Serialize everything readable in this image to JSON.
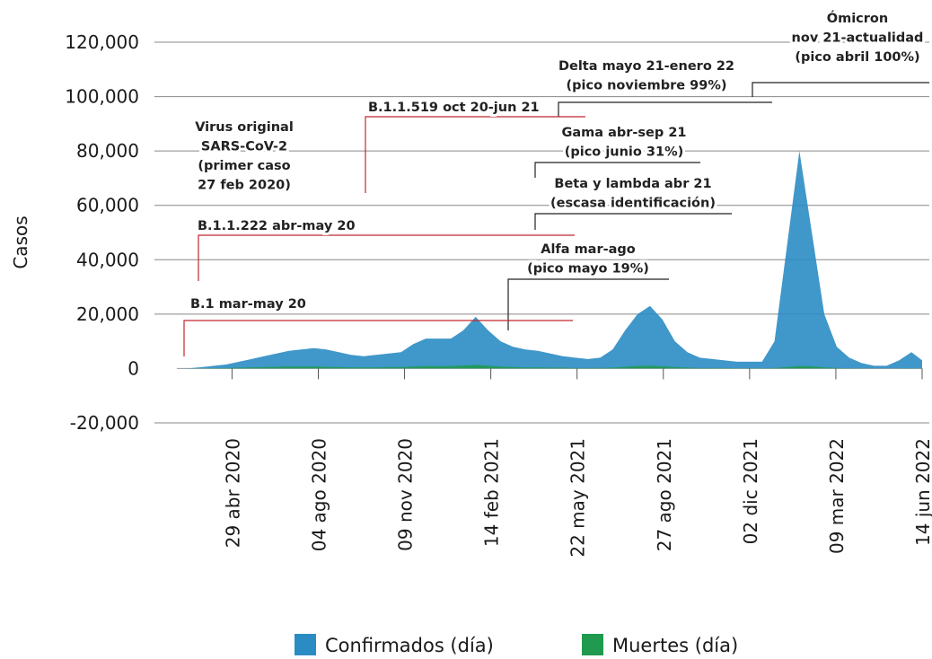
{
  "chart_data": {
    "type": "area",
    "y_label": "Casos",
    "x": [
      "2020-02-27",
      "2020-03-12",
      "2020-03-26",
      "2020-04-09",
      "2020-04-23",
      "2020-05-07",
      "2020-05-21",
      "2020-06-04",
      "2020-06-18",
      "2020-07-02",
      "2020-07-16",
      "2020-07-30",
      "2020-08-13",
      "2020-08-27",
      "2020-09-10",
      "2020-09-24",
      "2020-10-08",
      "2020-10-22",
      "2020-11-05",
      "2020-11-19",
      "2020-12-03",
      "2020-12-17",
      "2020-12-31",
      "2021-01-14",
      "2021-01-28",
      "2021-02-11",
      "2021-02-25",
      "2021-03-11",
      "2021-03-25",
      "2021-04-08",
      "2021-04-22",
      "2021-05-06",
      "2021-05-20",
      "2021-06-03",
      "2021-06-17",
      "2021-07-01",
      "2021-07-15",
      "2021-07-29",
      "2021-08-12",
      "2021-08-26",
      "2021-09-09",
      "2021-09-23",
      "2021-10-07",
      "2021-10-21",
      "2021-11-04",
      "2021-11-18",
      "2021-12-02",
      "2021-12-16",
      "2021-12-30",
      "2022-01-13",
      "2022-01-27",
      "2022-02-10",
      "2022-02-24",
      "2022-03-10",
      "2022-03-24",
      "2022-04-07",
      "2022-04-21",
      "2022-05-05",
      "2022-05-19",
      "2022-06-02",
      "2022-06-14"
    ],
    "series": [
      {
        "name": "Confirmados (día)",
        "color": "#2b8cc4",
        "values": [
          0,
          100,
          500,
          1000,
          1500,
          2500,
          3500,
          4500,
          5500,
          6500,
          7000,
          7500,
          7000,
          6000,
          5000,
          4500,
          5000,
          5500,
          6000,
          9000,
          11000,
          11000,
          11000,
          14000,
          19000,
          14000,
          10000,
          8000,
          7000,
          6500,
          5500,
          4500,
          4000,
          3500,
          4000,
          7000,
          14000,
          20000,
          23000,
          18000,
          10000,
          6000,
          4000,
          3500,
          3000,
          2500,
          2500,
          2500,
          10000,
          45000,
          80000,
          50000,
          20000,
          8000,
          4000,
          2000,
          1000,
          1000,
          3000,
          6000,
          3000
        ]
      },
      {
        "name": "Muertes (día)",
        "color": "#1f9a4e",
        "values": [
          0,
          0,
          50,
          100,
          200,
          300,
          400,
          500,
          600,
          700,
          700,
          700,
          600,
          500,
          400,
          400,
          400,
          500,
          500,
          700,
          900,
          900,
          900,
          1100,
          1300,
          1000,
          700,
          500,
          400,
          400,
          300,
          300,
          200,
          200,
          200,
          300,
          600,
          900,
          1000,
          800,
          500,
          300,
          200,
          200,
          150,
          100,
          100,
          100,
          200,
          500,
          900,
          800,
          400,
          200,
          100,
          50,
          30,
          30,
          50,
          80,
          50
        ]
      }
    ],
    "xlim": [
      "2020-02-27",
      "2022-06-14"
    ],
    "xticks": [
      {
        "value": "2020-04-29",
        "label": "29 abr 2020"
      },
      {
        "value": "2020-08-04",
        "label": "04 ago 2020"
      },
      {
        "value": "2020-11-09",
        "label": "09 nov 2020"
      },
      {
        "value": "2021-02-14",
        "label": "14 feb 2021"
      },
      {
        "value": "2021-05-22",
        "label": "22 may 2021"
      },
      {
        "value": "2021-08-27",
        "label": "27 ago 2021"
      },
      {
        "value": "2021-12-02",
        "label": "02 dic 2021"
      },
      {
        "value": "2022-03-09",
        "label": "09 mar 2022"
      },
      {
        "value": "2022-06-14",
        "label": "14 jun 2022"
      }
    ],
    "ylim": [
      -20000,
      120000
    ],
    "yticks": [
      {
        "value": -20000,
        "label": "-20,000"
      },
      0,
      {
        "value": 20000,
        "label": "20,000"
      },
      {
        "value": 40000,
        "label": "40,000"
      },
      {
        "value": 60000,
        "label": "60,000"
      },
      {
        "value": 80000,
        "label": "80,000"
      },
      {
        "value": 100000,
        "label": "100,000"
      },
      {
        "value": 120000,
        "label": "120,000"
      }
    ],
    "grid": true,
    "annotations": [
      [
        "Ómicron",
        "nov 21-actualidad",
        "(pico abril 100%)"
      ],
      [
        "Delta mayo 21-enero 22",
        "(pico noviembre 99%)"
      ],
      [
        "B.1.1.519 oct 20-jun 21"
      ],
      [
        "Virus original",
        "SARS-CoV-2",
        "(primer caso",
        "27 feb 2020)"
      ],
      [
        "Gama abr-sep 21",
        "(pico junio 31%)"
      ],
      [
        "Beta y lambda abr 21",
        "(escasa identificación)"
      ],
      [
        "B.1.1.222 abr-may 20"
      ],
      [
        "Alfa mar-ago",
        "(pico mayo 19%)"
      ],
      [
        "B.1 mar-may 20"
      ]
    ]
  }
}
